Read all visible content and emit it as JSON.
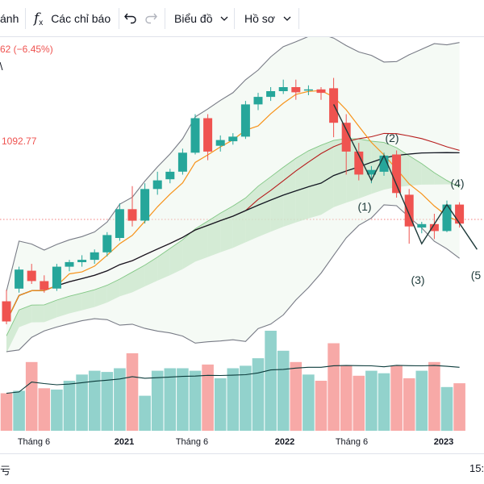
{
  "toolbar": {
    "cut_label": "ánh",
    "indicators_label": "Các chỉ báo",
    "chart_type_label": "Biểu đồ",
    "profile_label": "Hồ sơ"
  },
  "legend": {
    "change_text": "62 (−6.45%)",
    "ma_value": "1092.77"
  },
  "x_axis": {
    "labels": [
      "Tháng 6",
      "2021",
      "Tháng 6",
      "2022",
      "Tháng 6",
      "2023"
    ]
  },
  "footer": {
    "left_glyph": "亏",
    "right_time": "15:"
  },
  "wave_labels": [
    "(1)",
    "(2)",
    "(3)",
    "(4)",
    "(5"
  ],
  "colors": {
    "up": "#26a69a",
    "down": "#ef5350",
    "vol_up": "#92d2cc",
    "vol_down": "#f7a9a7",
    "ma_orange": "#f7931a",
    "ma_black": "#131722",
    "ma_red": "#b71c1c",
    "bb_gray": "#787b86",
    "cloud_green": "#c8e6c9",
    "cloud_red": "#f8d7d7",
    "wave_line": "#1e3a3a"
  },
  "chart_data": {
    "type": "candlestick",
    "candles": [
      {
        "o": 940,
        "h": 960,
        "l": 900,
        "c": 905
      },
      {
        "o": 962,
        "h": 1000,
        "l": 955,
        "c": 995
      },
      {
        "o": 993,
        "h": 1005,
        "l": 970,
        "c": 975
      },
      {
        "o": 975,
        "h": 985,
        "l": 955,
        "c": 960
      },
      {
        "o": 962,
        "h": 1005,
        "l": 958,
        "c": 1000
      },
      {
        "o": 1000,
        "h": 1012,
        "l": 992,
        "c": 1008
      },
      {
        "o": 1008,
        "h": 1020,
        "l": 1000,
        "c": 1012
      },
      {
        "o": 1012,
        "h": 1030,
        "l": 1005,
        "c": 1025
      },
      {
        "o": 1025,
        "h": 1060,
        "l": 1018,
        "c": 1055
      },
      {
        "o": 1050,
        "h": 1110,
        "l": 1045,
        "c": 1100
      },
      {
        "o": 1100,
        "h": 1140,
        "l": 1070,
        "c": 1080
      },
      {
        "o": 1080,
        "h": 1145,
        "l": 1075,
        "c": 1135
      },
      {
        "o": 1135,
        "h": 1165,
        "l": 1125,
        "c": 1150
      },
      {
        "o": 1152,
        "h": 1170,
        "l": 1145,
        "c": 1165
      },
      {
        "o": 1165,
        "h": 1205,
        "l": 1160,
        "c": 1198
      },
      {
        "o": 1198,
        "h": 1265,
        "l": 1195,
        "c": 1258
      },
      {
        "o": 1258,
        "h": 1265,
        "l": 1185,
        "c": 1200
      },
      {
        "o": 1210,
        "h": 1228,
        "l": 1200,
        "c": 1220
      },
      {
        "o": 1218,
        "h": 1232,
        "l": 1212,
        "c": 1226
      },
      {
        "o": 1226,
        "h": 1288,
        "l": 1222,
        "c": 1282
      },
      {
        "o": 1282,
        "h": 1302,
        "l": 1272,
        "c": 1295
      },
      {
        "o": 1295,
        "h": 1312,
        "l": 1288,
        "c": 1305
      },
      {
        "o": 1305,
        "h": 1325,
        "l": 1300,
        "c": 1312
      },
      {
        "o": 1312,
        "h": 1325,
        "l": 1290,
        "c": 1303
      },
      {
        "o": 1308,
        "h": 1315,
        "l": 1298,
        "c": 1308
      },
      {
        "o": 1308,
        "h": 1312,
        "l": 1290,
        "c": 1302
      },
      {
        "o": 1310,
        "h": 1328,
        "l": 1225,
        "c": 1250
      },
      {
        "o": 1250,
        "h": 1265,
        "l": 1160,
        "c": 1200
      },
      {
        "o": 1200,
        "h": 1215,
        "l": 1150,
        "c": 1160
      },
      {
        "o": 1160,
        "h": 1175,
        "l": 1145,
        "c": 1168
      },
      {
        "o": 1165,
        "h": 1198,
        "l": 1158,
        "c": 1193
      },
      {
        "o": 1195,
        "h": 1202,
        "l": 1120,
        "c": 1128
      },
      {
        "o": 1125,
        "h": 1135,
        "l": 1040,
        "c": 1070
      },
      {
        "o": 1068,
        "h": 1078,
        "l": 1058,
        "c": 1074
      },
      {
        "o": 1074,
        "h": 1092,
        "l": 1048,
        "c": 1062
      },
      {
        "o": 1062,
        "h": 1115,
        "l": 1060,
        "c": 1108
      },
      {
        "o": 1108,
        "h": 1112,
        "l": 1068,
        "c": 1075
      }
    ],
    "volume": [
      30,
      32,
      55,
      34,
      33,
      40,
      45,
      48,
      47,
      50,
      62,
      28,
      48,
      50,
      50,
      48,
      53,
      42,
      50,
      52,
      58,
      80,
      64,
      55,
      45,
      40,
      70,
      52,
      44,
      48,
      46,
      52,
      42,
      48,
      55,
      35,
      38
    ]
  }
}
